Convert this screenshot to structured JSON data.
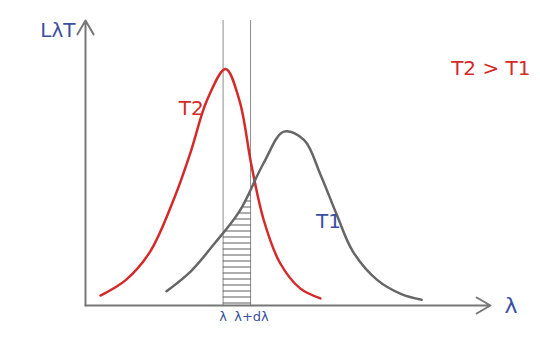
{
  "chart_data": {
    "type": "line",
    "y_label": "LλT",
    "x_label": "λ",
    "xlim": [
      0,
      100
    ],
    "ylim": [
      0,
      100
    ],
    "xticks": [
      {
        "value": 34,
        "label": "λ"
      },
      {
        "value": 41,
        "label": "λ+dλ"
      }
    ],
    "yticks": [],
    "tick_labels": "x",
    "grid": false,
    "series": [
      {
        "name": "T2",
        "color": "#d42a2a",
        "x": [
          3.7,
          10,
          16,
          22,
          26,
          30,
          34.6,
          38,
          41,
          44,
          48,
          53,
          58
        ],
        "values": [
          3.5,
          9,
          19,
          38,
          54,
          72,
          83,
          72,
          49,
          30,
          15,
          6,
          2.5
        ]
      },
      {
        "name": "T1",
        "color": "#666666",
        "x": [
          20,
          26,
          32,
          38,
          44,
          49,
          54,
          58,
          62,
          66,
          72,
          78,
          83
        ],
        "values": [
          5,
          12,
          22,
          33,
          50,
          61,
          58,
          46,
          32,
          19,
          9,
          4,
          2
        ]
      }
    ],
    "annotations": [
      {
        "text": "T2 > T1",
        "color": "#d42a2a"
      }
    ]
  }
}
